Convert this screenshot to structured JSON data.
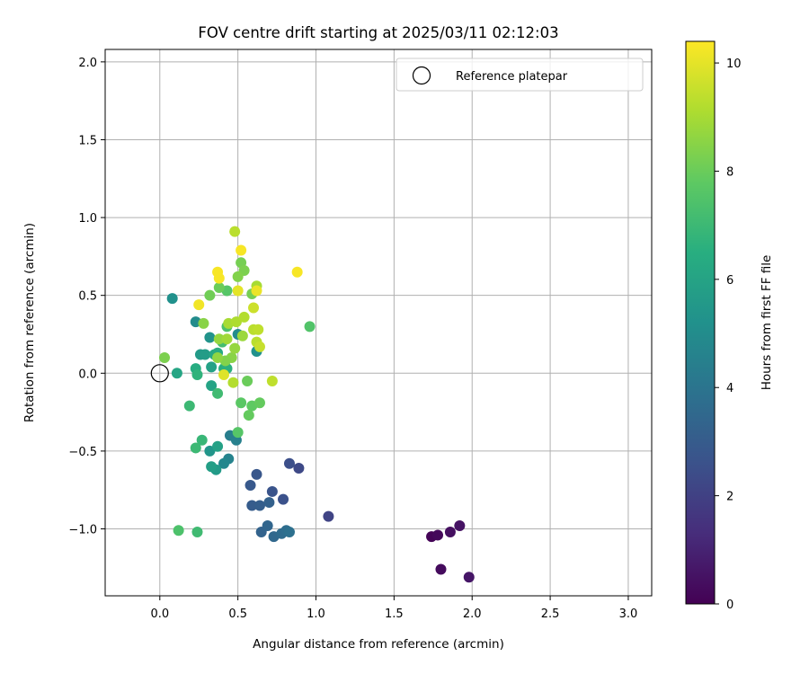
{
  "chart_data": {
    "type": "scatter",
    "title": "FOV centre drift starting at 2025/03/11 02:12:03",
    "xlabel": "Angular distance from reference (arcmin)",
    "ylabel": "Rotation from reference (arcmin)",
    "xlim": [
      -0.35,
      3.15
    ],
    "ylim": [
      -1.43,
      2.08
    ],
    "xticks": [
      0.0,
      0.5,
      1.0,
      1.5,
      2.0,
      2.5,
      3.0
    ],
    "xtick_labels": [
      "0.0",
      "0.5",
      "1.0",
      "1.5",
      "2.0",
      "2.5",
      "3.0"
    ],
    "yticks": [
      -1.0,
      -0.5,
      0.0,
      0.5,
      1.0,
      1.5,
      2.0
    ],
    "ytick_labels": [
      "−1.0",
      "−0.5",
      "0.0",
      "0.5",
      "1.0",
      "1.5",
      "2.0"
    ],
    "grid": true,
    "legend": {
      "placement": "top-right",
      "entries": [
        "Reference platepar"
      ]
    },
    "colorbar": {
      "label": "Hours from first FF file",
      "range": [
        0,
        10.4
      ],
      "colormap": "viridis",
      "ticks": [
        0,
        2,
        4,
        6,
        8,
        10
      ],
      "tick_labels": [
        "0",
        "2",
        "4",
        "6",
        "8",
        "10"
      ]
    },
    "reference": {
      "x": 0.0,
      "y": 0.0
    },
    "points": [
      [
        1.74,
        -1.05,
        0.1
      ],
      [
        1.78,
        -1.04,
        0.2
      ],
      [
        1.8,
        -1.26,
        0.3
      ],
      [
        1.86,
        -1.02,
        0.4
      ],
      [
        1.92,
        -0.98,
        0.5
      ],
      [
        1.98,
        -1.31,
        0.6
      ],
      [
        1.08,
        -0.92,
        2.1
      ],
      [
        0.89,
        -0.61,
        2.3
      ],
      [
        0.83,
        -0.58,
        2.5
      ],
      [
        0.79,
        -0.81,
        2.6
      ],
      [
        0.72,
        -0.76,
        2.7
      ],
      [
        0.62,
        -0.65,
        2.8
      ],
      [
        0.58,
        -0.72,
        2.9
      ],
      [
        0.59,
        -0.85,
        3.0
      ],
      [
        0.64,
        -0.85,
        3.1
      ],
      [
        0.7,
        -0.83,
        3.2
      ],
      [
        0.65,
        -1.02,
        3.3
      ],
      [
        0.69,
        -0.98,
        3.4
      ],
      [
        0.73,
        -1.05,
        3.5
      ],
      [
        0.78,
        -1.03,
        3.6
      ],
      [
        0.81,
        -1.01,
        3.7
      ],
      [
        0.83,
        -1.02,
        3.8
      ],
      [
        0.45,
        -0.4,
        4.4
      ],
      [
        0.49,
        -0.43,
        4.5
      ],
      [
        0.44,
        -0.55,
        4.6
      ],
      [
        0.41,
        -0.58,
        4.8
      ],
      [
        0.5,
        0.25,
        5.0
      ],
      [
        0.62,
        0.14,
        5.2
      ],
      [
        0.32,
        -0.5,
        5.4
      ],
      [
        0.36,
        -0.62,
        5.6
      ],
      [
        0.33,
        -0.6,
        5.8
      ],
      [
        0.37,
        -0.47,
        5.9
      ],
      [
        0.23,
        0.33,
        5.0
      ],
      [
        0.08,
        0.48,
        5.2
      ],
      [
        0.32,
        0.23,
        5.3
      ],
      [
        0.26,
        0.12,
        5.6
      ],
      [
        0.29,
        0.12,
        5.7
      ],
      [
        0.33,
        0.04,
        5.9
      ],
      [
        0.33,
        -0.08,
        6.0
      ],
      [
        0.35,
        0.12,
        6.2
      ],
      [
        0.37,
        0.13,
        6.3
      ],
      [
        0.41,
        0.03,
        6.5
      ],
      [
        0.43,
        0.03,
        6.6
      ],
      [
        0.23,
        0.03,
        6.4
      ],
      [
        0.24,
        -0.01,
        6.7
      ],
      [
        0.11,
        0.0,
        6.1
      ],
      [
        0.27,
        -0.43,
        6.9
      ],
      [
        0.23,
        -0.48,
        7.0
      ],
      [
        0.19,
        -0.21,
        7.0
      ],
      [
        0.37,
        -0.13,
        7.1
      ],
      [
        0.4,
        0.2,
        7.2
      ],
      [
        0.43,
        0.3,
        7.4
      ],
      [
        0.12,
        -1.01,
        7.4
      ],
      [
        0.24,
        -1.02,
        7.1
      ],
      [
        0.96,
        0.3,
        7.5
      ],
      [
        0.5,
        -0.38,
        7.6
      ],
      [
        0.52,
        -0.19,
        7.7
      ],
      [
        0.59,
        -0.21,
        7.8
      ],
      [
        0.57,
        -0.27,
        7.9
      ],
      [
        0.64,
        -0.19,
        7.9
      ],
      [
        0.43,
        0.53,
        7.6
      ],
      [
        0.38,
        0.55,
        8.0
      ],
      [
        0.32,
        0.5,
        8.1
      ],
      [
        0.52,
        0.71,
        8.2
      ],
      [
        0.54,
        0.66,
        8.3
      ],
      [
        0.5,
        0.62,
        8.4
      ],
      [
        0.56,
        -0.05,
        8.0
      ],
      [
        0.03,
        0.1,
        8.3
      ],
      [
        0.46,
        0.1,
        8.5
      ],
      [
        0.42,
        0.08,
        8.4
      ],
      [
        0.37,
        0.1,
        8.6
      ],
      [
        0.48,
        0.16,
        8.7
      ],
      [
        0.53,
        0.24,
        8.8
      ],
      [
        0.59,
        0.51,
        8.2
      ],
      [
        0.28,
        0.32,
        8.5
      ],
      [
        0.38,
        0.22,
        8.7
      ],
      [
        0.43,
        0.22,
        8.9
      ],
      [
        0.44,
        0.32,
        9.0
      ],
      [
        0.47,
        -0.06,
        9.2
      ],
      [
        0.49,
        0.33,
        9.1
      ],
      [
        0.54,
        0.36,
        9.2
      ],
      [
        0.6,
        0.28,
        9.3
      ],
      [
        0.62,
        0.2,
        9.3
      ],
      [
        0.63,
        0.28,
        9.4
      ],
      [
        0.64,
        0.17,
        9.5
      ],
      [
        0.6,
        0.42,
        9.6
      ],
      [
        0.62,
        0.56,
        9.0
      ],
      [
        0.48,
        0.91,
        9.3
      ],
      [
        0.72,
        -0.05,
        9.4
      ],
      [
        0.41,
        -0.01,
        9.9
      ],
      [
        0.5,
        0.53,
        10.0
      ],
      [
        0.62,
        0.53,
        10.1
      ],
      [
        0.25,
        0.44,
        10.2
      ],
      [
        0.38,
        0.61,
        10.3
      ],
      [
        0.37,
        0.65,
        10.3
      ],
      [
        0.52,
        0.79,
        10.3
      ],
      [
        0.88,
        0.65,
        10.3
      ]
    ]
  }
}
